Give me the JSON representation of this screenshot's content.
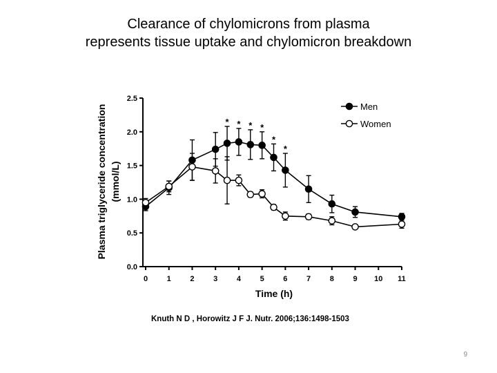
{
  "slide": {
    "title_line1": "Clearance of chylomicrons from plasma",
    "title_line2": "represents tissue uptake and chylomicron breakdown",
    "citation": "Knuth N D , Horowitz J F  J. Nutr. 2006;136:1498-1503",
    "page_number": "9"
  },
  "chart_data": {
    "type": "line",
    "title": "",
    "xlabel": "Time (h)",
    "ylabel_line1": "Plasma triglyceride concentration",
    "ylabel_line2": "(mmol/L)",
    "xlim": [
      0,
      11
    ],
    "ylim": [
      0,
      2.5
    ],
    "xticks": [
      0,
      1,
      2,
      3,
      4,
      5,
      6,
      7,
      8,
      9,
      10,
      11
    ],
    "yticks": [
      0.0,
      0.5,
      1.0,
      1.5,
      2.0,
      2.5
    ],
    "ytick_labels": [
      "0.0",
      "0.5",
      "1.0",
      "1.5",
      "2.0",
      "2.5"
    ],
    "legend_position": "top-right",
    "significance_marker": "*",
    "significant_x": [
      3.5,
      4,
      4.5,
      5,
      5.5,
      6
    ],
    "series": [
      {
        "name": "Men",
        "marker": "filled-circle",
        "color": "#000000",
        "x": [
          0,
          1,
          2,
          3,
          3.5,
          4,
          4.5,
          5,
          5.5,
          6,
          7,
          8,
          9,
          11
        ],
        "y": [
          0.89,
          1.17,
          1.58,
          1.74,
          1.83,
          1.85,
          1.81,
          1.8,
          1.62,
          1.43,
          1.15,
          0.93,
          0.81,
          0.74
        ],
        "err": [
          0.06,
          0.1,
          0.3,
          0.25,
          0.25,
          0.2,
          0.22,
          0.2,
          0.2,
          0.25,
          0.2,
          0.13,
          0.08,
          0.05
        ]
      },
      {
        "name": "Women",
        "marker": "open-circle",
        "color": "#000000",
        "x": [
          0,
          1,
          2,
          3,
          3.5,
          4,
          4.5,
          5,
          5.5,
          6,
          7,
          8,
          9,
          11
        ],
        "y": [
          0.95,
          1.19,
          1.48,
          1.42,
          1.28,
          1.28,
          1.07,
          1.08,
          0.88,
          0.75,
          0.74,
          0.68,
          0.59,
          0.63
        ],
        "err": [
          0.06,
          0.08,
          0.2,
          0.18,
          0.35,
          0.08,
          0.04,
          0.06,
          0.04,
          0.06,
          0.04,
          0.06,
          0.03,
          0.06
        ]
      }
    ]
  }
}
